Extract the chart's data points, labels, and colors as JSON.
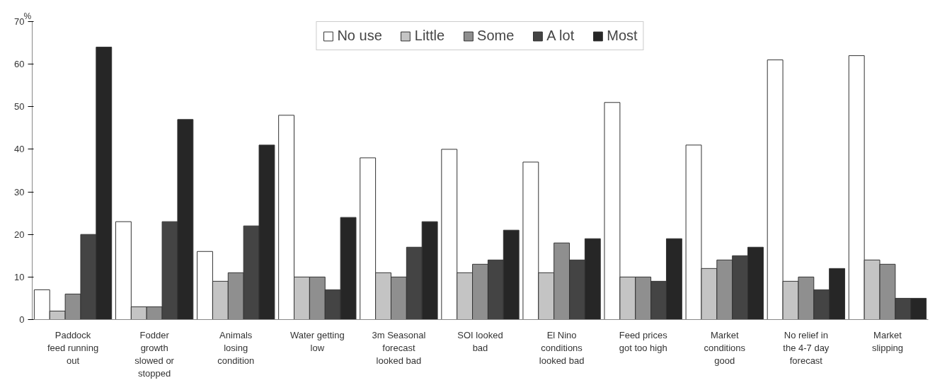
{
  "chart_data": {
    "type": "bar",
    "ylabel": "%",
    "categories": [
      "Paddock\nfeed running\nout",
      "Fodder\ngrowth\nslowed or\nstopped",
      "Animals\nlosing\ncondition",
      "Water getting\nlow",
      "3m Seasonal\nforecast\nlooked bad",
      "SOI looked\nbad",
      "El Nino\nconditions\nlooked bad",
      "Feed prices\ngot too high",
      "Market\nconditions\ngood",
      "No relief in\nthe 4-7 day\nforecast",
      "Market\nslipping"
    ],
    "series": [
      {
        "name": "No use",
        "color": "#ffffff",
        "values": [
          7,
          23,
          16,
          48,
          38,
          40,
          37,
          51,
          41,
          61,
          62
        ]
      },
      {
        "name": "Little",
        "color": "#c4c4c4",
        "values": [
          2,
          3,
          9,
          10,
          11,
          11,
          11,
          10,
          12,
          9,
          14
        ]
      },
      {
        "name": "Some",
        "color": "#8f8f8f",
        "values": [
          6,
          3,
          11,
          10,
          10,
          13,
          18,
          10,
          14,
          10,
          13
        ]
      },
      {
        "name": "A lot",
        "color": "#444444",
        "values": [
          20,
          23,
          22,
          7,
          17,
          14,
          14,
          9,
          15,
          7,
          5
        ]
      },
      {
        "name": "Most",
        "color": "#262626",
        "values": [
          64,
          47,
          41,
          24,
          23,
          21,
          19,
          19,
          17,
          12,
          5
        ]
      }
    ],
    "ylim": [
      0,
      70
    ],
    "yticks": [
      0,
      10,
      20,
      30,
      40,
      50,
      60,
      70
    ],
    "grid": false,
    "legend": "top"
  }
}
